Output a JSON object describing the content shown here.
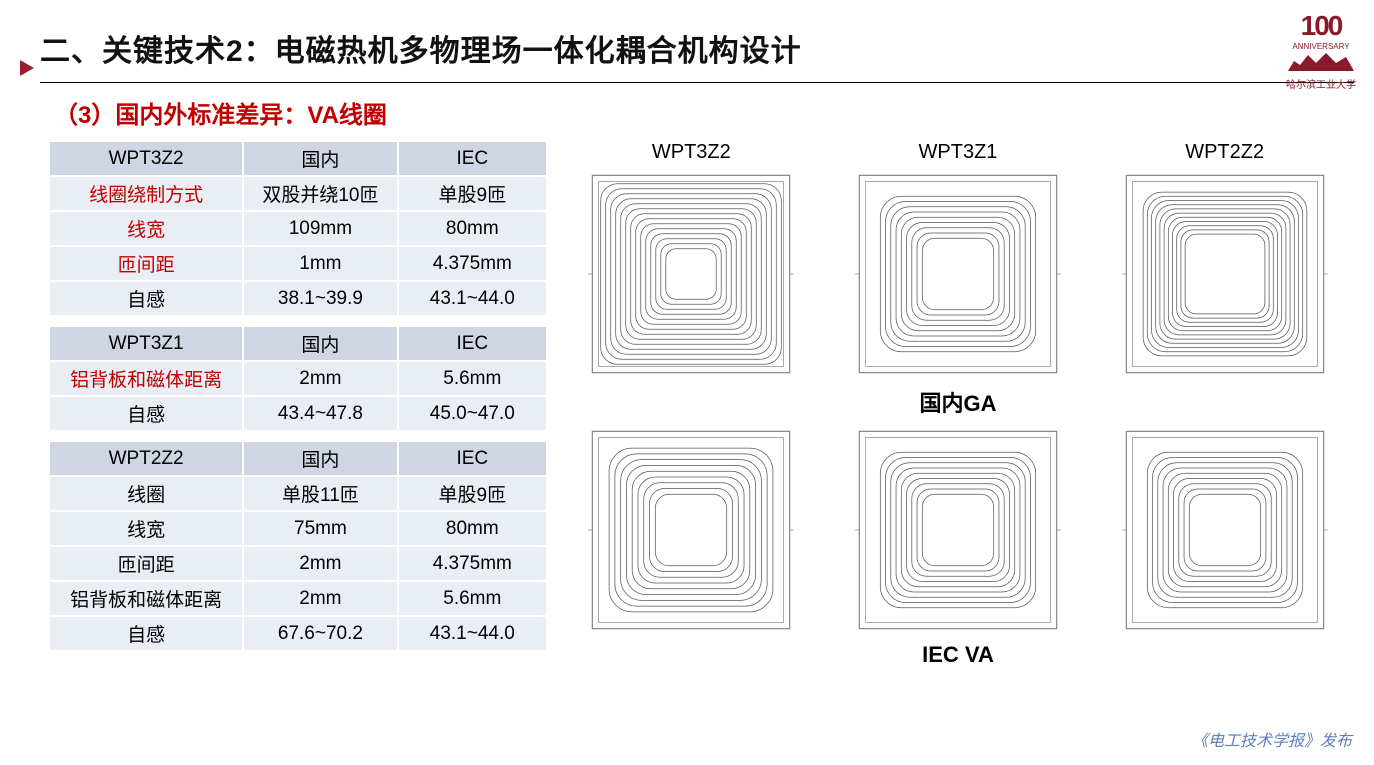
{
  "title": "二、关键技术2：电磁热机多物理场一体化耦合机构设计",
  "subtitle": "（3）国内外标准差异：VA线圈",
  "logo": {
    "num": "100",
    "anniv": "ANNIVERSARY",
    "school": "哈尔滨工业大学"
  },
  "footer": "《电工技术学报》发布",
  "colHeaders": {
    "cn": "国内",
    "iec": "IEC"
  },
  "table1": {
    "name": "WPT3Z2",
    "rows": [
      {
        "label": "线圈绕制方式",
        "red": true,
        "cn": "双股并绕10匝",
        "iec": "单股9匝"
      },
      {
        "label": "线宽",
        "red": true,
        "cn": "109mm",
        "iec": "80mm"
      },
      {
        "label": "匝间距",
        "red": true,
        "cn": "1mm",
        "iec": "4.375mm"
      },
      {
        "label": "自感",
        "red": false,
        "cn": "38.1~39.9",
        "iec": "43.1~44.0"
      }
    ]
  },
  "table2": {
    "name": "WPT3Z1",
    "rows": [
      {
        "label": "铝背板和磁体距离",
        "red": true,
        "cn": "2mm",
        "iec": "5.6mm"
      },
      {
        "label": "自感",
        "red": false,
        "cn": "43.4~47.8",
        "iec": "45.0~47.0"
      }
    ]
  },
  "table3": {
    "name": "WPT2Z2",
    "rows": [
      {
        "label": "线圈",
        "red": false,
        "cn": "单股11匝",
        "iec": "单股9匝"
      },
      {
        "label": "线宽",
        "red": false,
        "cn": "75mm",
        "iec": "80mm"
      },
      {
        "label": "匝间距",
        "red": false,
        "cn": "2mm",
        "iec": "4.375mm"
      },
      {
        "label": "铝背板和磁体距离",
        "red": false,
        "cn": "2mm",
        "iec": "5.6mm"
      },
      {
        "label": "自感",
        "red": false,
        "cn": "67.6~70.2",
        "iec": "43.1~44.0"
      }
    ]
  },
  "diagrams": {
    "topLabels": [
      "WPT3Z2",
      "WPT3Z1",
      "WPT2Z2"
    ],
    "row1Caption": "国内GA",
    "row2Caption": "IEC VA",
    "coilStyle": {
      "stroke": "#555555",
      "strokeWidth": 0.7,
      "frameStroke": "#777777"
    },
    "row1": [
      {
        "turns": 14,
        "outerPad": 14,
        "innerPad": 76,
        "corner": 16
      },
      {
        "turns": 9,
        "outerPad": 26,
        "innerPad": 66,
        "corner": 20
      },
      {
        "turns": 11,
        "outerPad": 22,
        "innerPad": 62,
        "corner": 18
      }
    ],
    "row2": [
      {
        "turns": 9,
        "outerPad": 22,
        "innerPad": 66,
        "corner": 22
      },
      {
        "turns": 9,
        "outerPad": 26,
        "innerPad": 66,
        "corner": 20
      },
      {
        "turns": 9,
        "outerPad": 26,
        "innerPad": 66,
        "corner": 20
      }
    ]
  }
}
